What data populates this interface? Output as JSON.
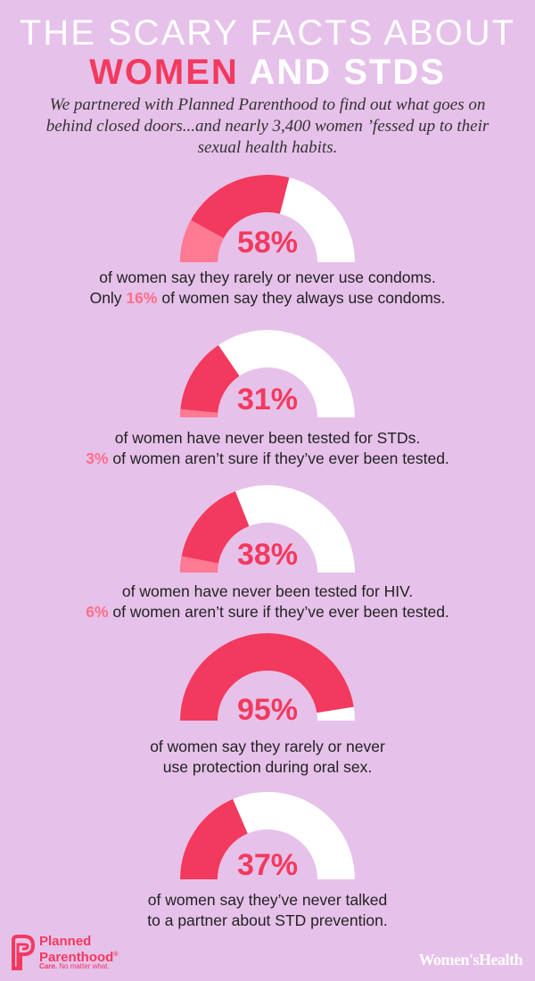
{
  "header": {
    "line1": "THE SCARY FACTS ABOUT",
    "line2_highlight": "WOMEN",
    "line2_rest": " AND STDS"
  },
  "intro": "We partnered with Planned Parenthood to find out what goes on behind closed doors...and nearly 3,400 women ’fessed up to their sexual health habits.",
  "stats": [
    {
      "percent_label": "58%",
      "value": 58,
      "secondary_value": 16,
      "caption_line1": "of women say they rarely or never use condoms.",
      "caption_line2_pre": "Only ",
      "caption_line2_highlight": "16%",
      "caption_line2_post": " of women say they always use condoms."
    },
    {
      "percent_label": "31%",
      "value": 31,
      "secondary_value": 3,
      "caption_line1": "of women have never been tested for STDs.",
      "caption_line2_pre": "",
      "caption_line2_highlight": "3%",
      "caption_line2_post": " of women aren’t sure if they’ve ever been tested."
    },
    {
      "percent_label": "38%",
      "value": 38,
      "secondary_value": 6,
      "caption_line1": "of women have never been tested for HIV.",
      "caption_line2_pre": "",
      "caption_line2_highlight": "6%",
      "caption_line2_post": " of women aren’t sure if they’ve ever been tested."
    },
    {
      "percent_label": "95%",
      "value": 95,
      "secondary_value": 0,
      "caption_line1": "of women say they rarely or never",
      "caption_line2_pre": "use protection during oral sex.",
      "caption_line2_highlight": "",
      "caption_line2_post": ""
    },
    {
      "percent_label": "37%",
      "value": 37,
      "secondary_value": 0,
      "caption_line1": "of women say they’ve never talked",
      "caption_line2_pre": "to a partner about STD prevention.",
      "caption_line2_highlight": "",
      "caption_line2_post": ""
    }
  ],
  "colors": {
    "background": "#e6c1ea",
    "primary": "#f23a5e",
    "secondary": "#ff7a93",
    "track": "#ffffff"
  },
  "footer": {
    "pp_name_line1": "Planned",
    "pp_name_line2": "Parenthood",
    "pp_registered": "®",
    "pp_tag_bold": "Care.",
    "pp_tag_rest": " No matter what.",
    "wh_logo": "Women'sHealth"
  }
}
